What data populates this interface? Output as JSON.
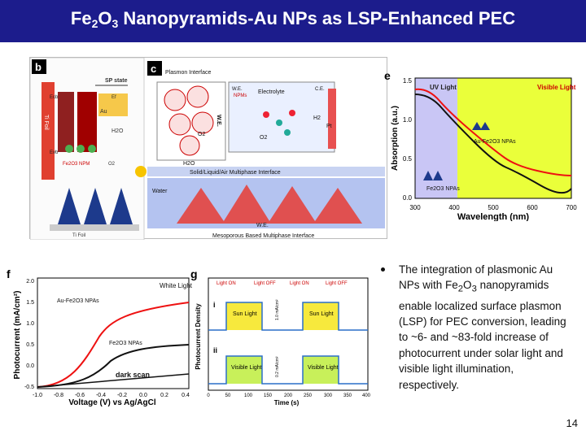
{
  "slide": {
    "title_part1": "Fe",
    "title_sub1": "2",
    "title_part2": "O",
    "title_sub2": "3",
    "title_part3": " Nanopyramids-Au NPs as LSP-Enhanced PEC",
    "page_number": "14",
    "title_bar_color": "#1c1c8c"
  },
  "bullet": {
    "text_a": "The integration of plasmonic Au NPs with Fe",
    "sub_a": "2",
    "text_b": "O",
    "sub_b": "3",
    "text_c": " nanopyramids enable localized surface plasmon (LSP) for PEC conversion, leading to ~6- and ~83-fold increase of photocurrent under solar light and visible light illumination, respectively."
  },
  "panel_b": {
    "label": "b",
    "sp_state": "SP state",
    "ecb": "Ecb",
    "ef": "Ef",
    "au": "Au",
    "evb": "Evb",
    "ti_foil": "Ti Foil",
    "h2o": "H2O",
    "fe2o3_npm": "Fe2O3 NPM",
    "o2": "O2",
    "ti_foil_bottom": "Ti Foil"
  },
  "panel_c": {
    "label": "c",
    "plasmon_interface": "Plasmon Interface",
    "we": "W.E.",
    "ce": "C.E.",
    "npms": "NPMs",
    "electrolyte": "Electrolyte",
    "pt": "Pt",
    "o2": "O2",
    "h2o": "H2O",
    "h2": "H2",
    "multiphase": "Solid/Liquid/Air Multiphase Interface",
    "water": "Water",
    "we_bottom": "W.E.",
    "caption": "Mesoporous Based Multiphase Interface"
  },
  "panel_e": {
    "label": "e",
    "ylabel": "Absorption (a.u.)",
    "xlabel": "Wavelength (nm)",
    "uv_label": "UV Light",
    "vis_label": "Visible Light",
    "legend_au": "Au-Fe2O3 NPAs",
    "legend_fe": "Fe2O3 NPAs",
    "uv_color": "#c9c6f5",
    "vis_color": "#eaff3a",
    "x_ticks": [
      "300",
      "400",
      "500",
      "600",
      "700"
    ],
    "y_ticks": [
      "0.0",
      "0.5",
      "1.0",
      "1.5"
    ]
  },
  "panel_f": {
    "label": "f",
    "ylabel": "Photocurrent (mA/cm²)",
    "xlabel": "Voltage (V) vs Ag/AgCl",
    "white_light": "White Light",
    "legend_au": "Au-Fe2O3 NPAs",
    "legend_fe": "Fe2O3 NPAs",
    "dark": "dark scan",
    "x_ticks": [
      "-1.0",
      "-0.8",
      "-0.6",
      "-0.4",
      "-0.2",
      "0.0",
      "0.2",
      "0.4"
    ],
    "y_ticks": [
      "-0.5",
      "0.0",
      "0.5",
      "1.0",
      "1.5",
      "2.0"
    ]
  },
  "panel_g": {
    "label": "g",
    "ylabel": "Photocurrent Density",
    "xlabel": "Time (s)",
    "light_on_1": "Light ON",
    "light_off_1": "Light OFF",
    "light_on_2": "Light ON",
    "light_off_2": "Light OFF",
    "row_i": "i",
    "row_ii": "ii",
    "sun_light": "Sun Light",
    "visible_light": "Visible Light",
    "scale_1": "1.0 mA/cm²",
    "scale_2": "0.2 mA/cm²",
    "x_ticks": [
      "0",
      "50",
      "100",
      "150",
      "200",
      "250",
      "300",
      "350",
      "400"
    ]
  }
}
